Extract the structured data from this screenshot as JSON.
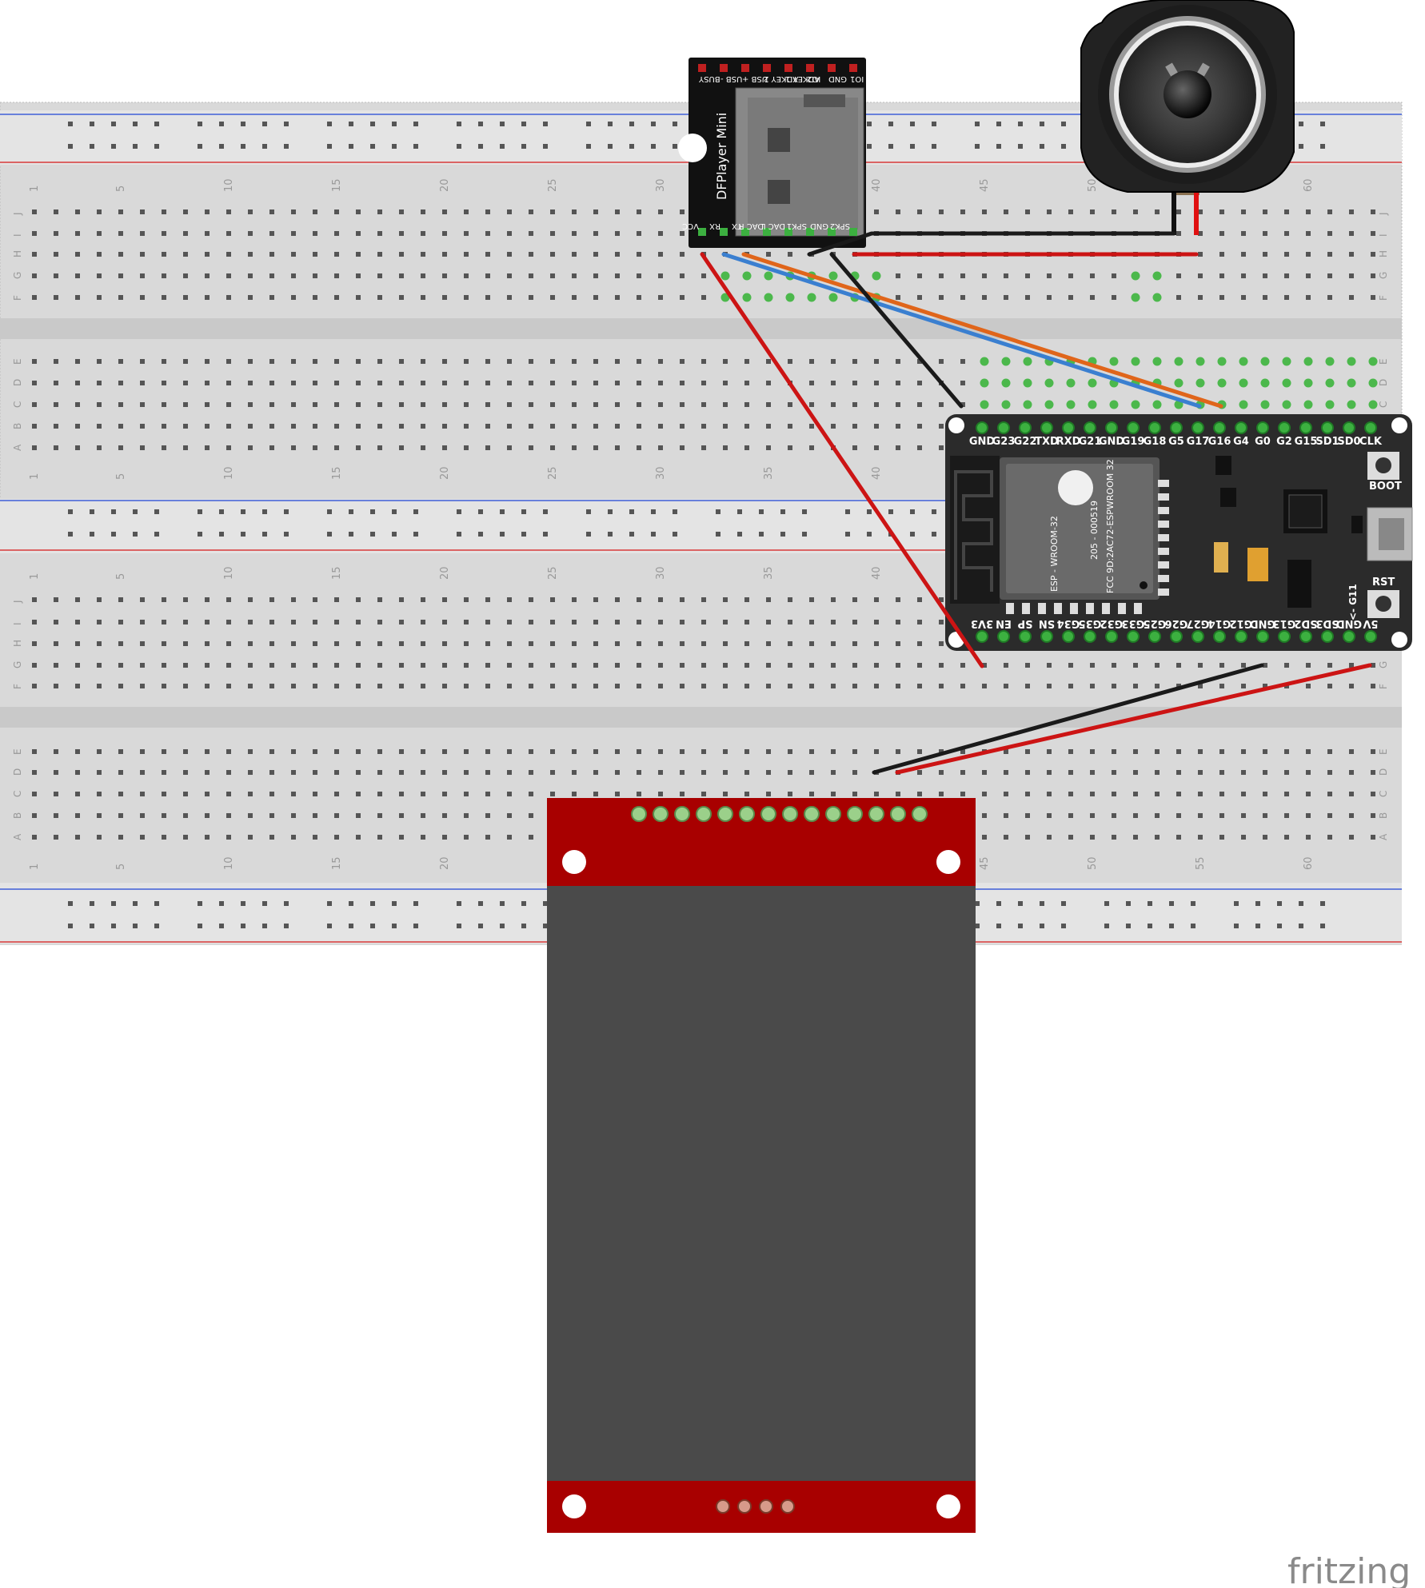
{
  "breadboard": {
    "column_numbers": [
      "1",
      "5",
      "10",
      "15",
      "20",
      "25",
      "30",
      "35",
      "40",
      "45",
      "50",
      "55",
      "60"
    ],
    "row_letters_top": [
      "J",
      "I",
      "H",
      "G",
      "F"
    ],
    "row_letters_bottom": [
      "E",
      "D",
      "C",
      "B",
      "A"
    ]
  },
  "dfplayer": {
    "title": "DFPlayer Mini",
    "top_pins": [
      "BUSY",
      "USB -",
      "USB +",
      "ADKEY 2",
      "ADKEY 1",
      "IO2",
      "GND",
      "IO1"
    ],
    "bottom_pins": [
      "VCC",
      "RX",
      "TX",
      "DAC R",
      "DAC L",
      "SPK1",
      "GND",
      "SPK2"
    ]
  },
  "esp32": {
    "top_pins": [
      "GND",
      "G23",
      "G22",
      "TXD",
      "RXD",
      "G21",
      "GND",
      "G19",
      "G18",
      "G5",
      "G17",
      "G16",
      "G4",
      "G0",
      "G2",
      "G15",
      "SD1",
      "SD0",
      "CLK"
    ],
    "bottom_pins": [
      "3V3",
      "EN",
      "SP",
      "SN",
      "G34",
      "G35",
      "G32",
      "G33",
      "G25",
      "G26",
      "G27",
      "G14",
      "G12",
      "GND",
      "G13",
      "SD2",
      "SD3",
      "GND",
      "5V"
    ],
    "boot_label": "BOOT",
    "rst_label": "RST",
    "g11_label": "<- G11",
    "module_text": [
      "ESP - WROOM-32",
      "205 - 000519",
      "FCC 9D:2AC72-ESPWROOM 32"
    ]
  },
  "brand": "fritzing",
  "colors": {
    "breadboard": "#d9d9d9",
    "rail_blue": "#3f5fd8",
    "rail_red": "#d83a3a",
    "wire_red": "#cc1414",
    "wire_black": "#1a1a1a",
    "wire_blue": "#3a7fd0",
    "wire_orange": "#e0651a",
    "tft_board": "#a80000",
    "tft_screen": "#4a4a4a",
    "esp_board": "#2b2b2b",
    "active_hole": "#4cb84c"
  }
}
